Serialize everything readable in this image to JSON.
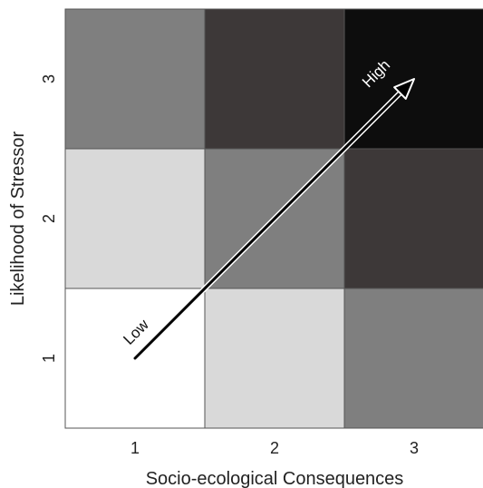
{
  "chart_data": {
    "type": "heatmap",
    "title": "",
    "xlabel": "Socio-ecological Consequences",
    "ylabel": "Likelihood of Stressor",
    "x_categories": [
      "1",
      "2",
      "3"
    ],
    "y_categories": [
      "1",
      "2",
      "3"
    ],
    "cells": [
      {
        "x": "1",
        "y": "1",
        "color": "#ffffff"
      },
      {
        "x": "2",
        "y": "1",
        "color": "#d9d9d9"
      },
      {
        "x": "3",
        "y": "1",
        "color": "#7f7f7f"
      },
      {
        "x": "1",
        "y": "2",
        "color": "#d9d9d9"
      },
      {
        "x": "2",
        "y": "2",
        "color": "#7f7f7f"
      },
      {
        "x": "3",
        "y": "2",
        "color": "#3d3838"
      },
      {
        "x": "1",
        "y": "3",
        "color": "#7f7f7f"
      },
      {
        "x": "2",
        "y": "3",
        "color": "#3d3838"
      },
      {
        "x": "3",
        "y": "3",
        "color": "#0d0d0d"
      }
    ],
    "arrow": {
      "from": {
        "x": 1,
        "y": 1
      },
      "to": {
        "x": 3,
        "y": 3
      }
    },
    "annotations": {
      "low": "Low",
      "high": "High"
    },
    "grid": false,
    "legend": "none"
  }
}
